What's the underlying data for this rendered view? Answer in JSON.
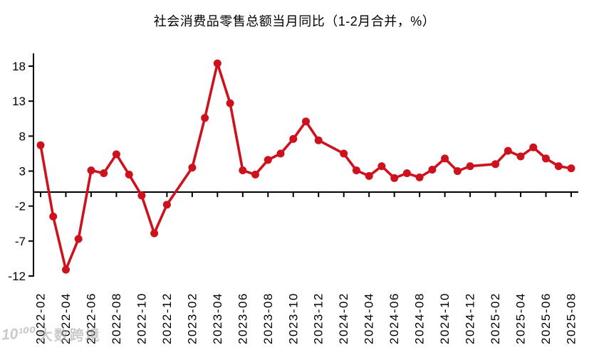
{
  "chart_data": {
    "type": "line",
    "title": "社会消费品零售总额当月同比（1-2月合并，%）",
    "xlabel": "",
    "ylabel": "",
    "legend": "none",
    "grid": false,
    "series_color": "#cd121e",
    "axis_color": "#000000",
    "ylim": [
      -12,
      19.8
    ],
    "y_ticks": [
      18,
      13,
      8,
      3,
      -2,
      -7,
      -12
    ],
    "zero_line": true,
    "x": [
      "2022-02",
      "2022-03",
      "2022-04",
      "2022-05",
      "2022-06",
      "2022-07",
      "2022-08",
      "2022-09",
      "2022-10",
      "2022-11",
      "2022-12",
      "2023-02",
      "2023-03",
      "2023-04",
      "2023-05",
      "2023-06",
      "2023-07",
      "2023-08",
      "2023-09",
      "2023-10",
      "2023-11",
      "2023-12",
      "2024-02",
      "2024-03",
      "2024-04",
      "2024-05",
      "2024-06",
      "2024-07",
      "2024-08",
      "2024-09",
      "2024-10",
      "2024-11",
      "2024-12",
      "2025-02",
      "2025-03",
      "2025-04",
      "2025-05",
      "2025-06",
      "2025-07",
      "2025-08"
    ],
    "values": [
      6.7,
      -3.5,
      -11.1,
      -6.7,
      3.1,
      2.7,
      5.4,
      2.5,
      -0.5,
      -5.9,
      -1.8,
      3.5,
      10.6,
      18.4,
      12.7,
      3.1,
      2.5,
      4.6,
      5.5,
      7.6,
      10.1,
      7.4,
      5.5,
      3.1,
      2.3,
      3.7,
      2.0,
      2.7,
      2.1,
      3.2,
      4.8,
      3.0,
      3.7,
      4.0,
      5.9,
      5.1,
      6.4,
      4.8,
      3.7,
      3.4
    ],
    "x_tick_labels": [
      "2022-02",
      "2022-04",
      "2022-06",
      "2022-08",
      "2022-10",
      "2022-12",
      "2023-02",
      "2023-04",
      "2023-06",
      "2023-08",
      "2023-10",
      "2023-12",
      "2024-02",
      "2024-04",
      "2024-06",
      "2024-08",
      "2024-10",
      "2024-12",
      "2025-02",
      "2025-04",
      "2025-06",
      "2025-08"
    ]
  },
  "watermark": {
    "logo": "10¹⁰⁰",
    "text": "大数跨境"
  }
}
